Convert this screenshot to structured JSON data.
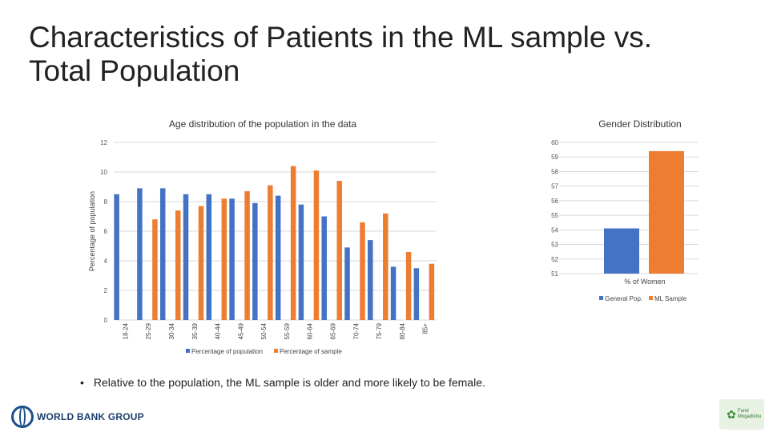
{
  "slide": {
    "title_line1": "Characteristics of Patients in the ML sample vs.",
    "title_line2": "Total Population",
    "bullet": "Relative to the population, the ML sample is older and more likely to be female.",
    "bullet_symbol": "•"
  },
  "logos": {
    "world_bank": "WORLD BANK GROUP",
    "partner_line1": "Fund",
    "partner_line2": "Mogadishu"
  },
  "chart_data": [
    {
      "type": "bar",
      "title": "Age distribution of the population in the data",
      "xlabel": "",
      "ylabel": "Percentage of population",
      "ylim": [
        0,
        12
      ],
      "yticks": [
        0,
        2,
        4,
        6,
        8,
        10,
        12
      ],
      "grid": true,
      "legend_position": "bottom",
      "categories": [
        "18-24",
        "25-29",
        "30-34",
        "35-39",
        "40-44",
        "45-49",
        "50-54",
        "55-59",
        "60-64",
        "65-69",
        "70-74",
        "75-79",
        "80-84",
        "85+"
      ],
      "series": [
        {
          "name": "Percentage of population",
          "color": "#4472c4",
          "values": [
            8.5,
            8.9,
            8.9,
            8.5,
            8.5,
            8.2,
            7.9,
            8.4,
            7.8,
            7.0,
            4.9,
            5.4,
            3.6,
            3.5
          ]
        },
        {
          "name": "Percentage of sample",
          "color": "#ed7d31",
          "values": [
            0.0,
            6.8,
            7.4,
            7.7,
            8.2,
            8.7,
            9.1,
            10.4,
            10.1,
            9.4,
            6.6,
            7.2,
            4.6,
            3.8
          ]
        }
      ]
    },
    {
      "type": "bar",
      "title": "Gender Distribution",
      "xlabel": "",
      "ylabel": "",
      "ylim": [
        51,
        60
      ],
      "yticks": [
        51,
        52,
        53,
        54,
        55,
        56,
        57,
        58,
        59,
        60
      ],
      "grid": true,
      "legend_position": "bottom",
      "categories": [
        "% of Women"
      ],
      "series": [
        {
          "name": "General Pop.",
          "color": "#4472c4",
          "values": [
            54.1
          ]
        },
        {
          "name": "ML Sample",
          "color": "#ed7d31",
          "values": [
            59.4
          ]
        }
      ]
    }
  ]
}
